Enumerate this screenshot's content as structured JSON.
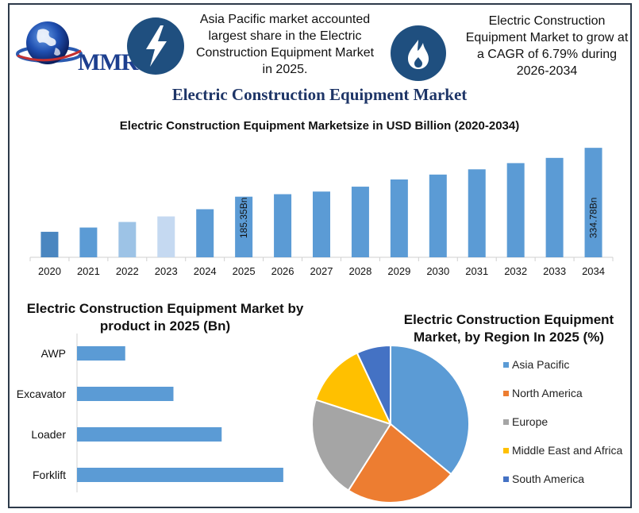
{
  "header": {
    "logo_text": "MMR",
    "info_left": "Asia Pacific market accounted largest share in the Electric Construction Equipment Market in 2025.",
    "info_right": "Electric Construction Equipment Market to grow at a CAGR of 6.79% during 2026-2034",
    "icons": [
      "globe-icon",
      "lightning-bolt-icon",
      "flame-icon"
    ]
  },
  "main_title": "Electric Construction Equipment Market",
  "colors": {
    "bar": "#5b9bd5",
    "bar_2020": "#4a86c0",
    "bar_2022": "#9dc3e6",
    "bar_2023": "#c5d9f1",
    "icon_bg": "#1f4f7f",
    "title": "#1e3567"
  },
  "chart_data": [
    {
      "type": "bar",
      "title": "Electric Construction Equipment Marketsize in USD Billion (2020-2034)",
      "categories": [
        "2020",
        "2021",
        "2022",
        "2023",
        "2024",
        "2025",
        "2026",
        "2027",
        "2028",
        "2029",
        "2030",
        "2031",
        "2032",
        "2033",
        "2034"
      ],
      "values": [
        78,
        91,
        108,
        125,
        147,
        185.35,
        193,
        201,
        216,
        238,
        253,
        269,
        288,
        304,
        334.78
      ],
      "data_labels": {
        "5": "185.35Bn",
        "14": "334.78Bn"
      },
      "ylim": [
        0,
        340
      ],
      "grid": false
    },
    {
      "type": "bar",
      "orientation": "horizontal",
      "title": "Electric Construction Equipment Market by product in 2025 (Bn)",
      "categories": [
        "AWP",
        "Excavator",
        "Loader",
        "Forklift"
      ],
      "values": [
        18,
        36,
        54,
        77
      ],
      "xlim": [
        0,
        80
      ],
      "grid": false
    },
    {
      "type": "pie",
      "title": "Electric Construction Equipment Market, by Region In 2025 (%)",
      "labels": [
        "Asia Pacific",
        "North America",
        "Europe",
        "Middle East and Africa",
        "South America"
      ],
      "values": [
        36,
        23,
        21,
        13,
        7
      ],
      "colors": [
        "#5b9bd5",
        "#ed7d31",
        "#a5a5a5",
        "#ffc000",
        "#4472c4"
      ],
      "legend_placement": "right"
    }
  ]
}
